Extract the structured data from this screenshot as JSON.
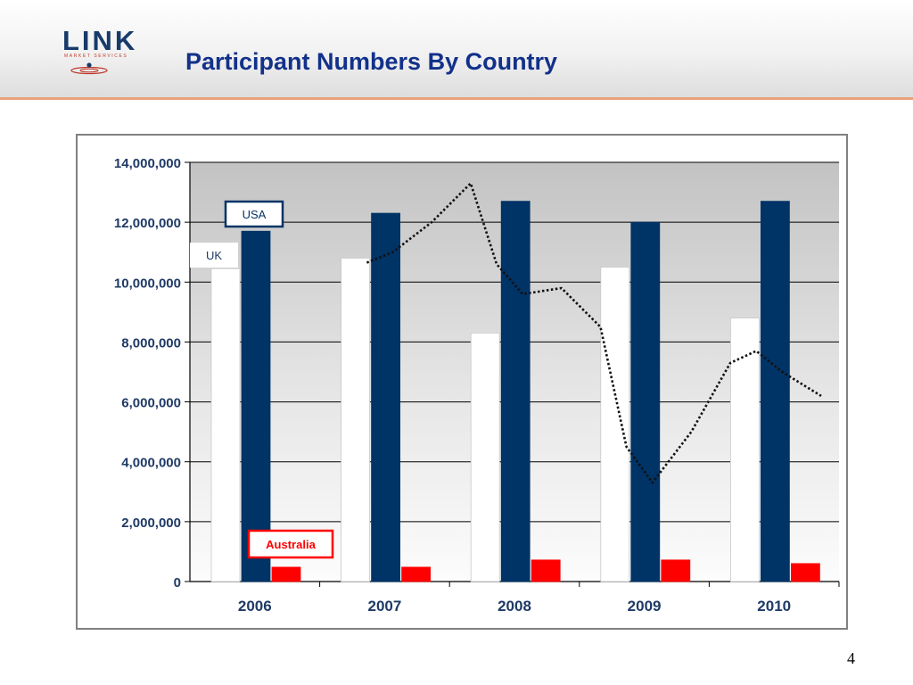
{
  "header": {
    "logo_text": "LINK",
    "logo_subtext": "MARKET SERVICES",
    "title": "Participant Numbers By Country"
  },
  "page_number": "4",
  "colors": {
    "uk": "#ffffff",
    "usa": "#003366",
    "australia": "#ff0000",
    "title": "#12318a",
    "axis_text": "#1f3a66"
  },
  "chart_data": {
    "type": "bar",
    "categories": [
      "2006",
      "2007",
      "2008",
      "2009",
      "2010"
    ],
    "series": [
      {
        "name": "UK",
        "values": [
          10450000,
          10800000,
          8300000,
          10500000,
          8800000
        ]
      },
      {
        "name": "USA",
        "values": [
          11700000,
          12300000,
          12700000,
          12000000,
          12700000
        ]
      },
      {
        "name": "Australia",
        "values": [
          480000,
          480000,
          720000,
          720000,
          600000
        ]
      }
    ],
    "overlay_line": {
      "type": "line",
      "style": "dotted",
      "x": [
        2007.0,
        2007.2,
        2007.5,
        2007.8,
        2008.0,
        2008.2,
        2008.5,
        2008.8,
        2009.0,
        2009.2,
        2009.5,
        2009.8,
        2010.0,
        2010.2,
        2010.5
      ],
      "y": [
        10650000,
        11000000,
        12000000,
        13300000,
        10600000,
        9600000,
        9800000,
        8500000,
        4500000,
        3300000,
        5000000,
        7300000,
        7700000,
        7000000,
        6200000
      ]
    },
    "title": "",
    "xlabel": "",
    "ylabel": "",
    "ylim": [
      0,
      14000000
    ],
    "yticks": [
      "0",
      "2,000,000",
      "4,000,000",
      "6,000,000",
      "8,000,000",
      "10,000,000",
      "12,000,000",
      "14,000,000"
    ],
    "ytick_values": [
      0,
      2000000,
      4000000,
      6000000,
      8000000,
      10000000,
      12000000,
      14000000
    ],
    "grid": true,
    "legend": "inline labels"
  }
}
